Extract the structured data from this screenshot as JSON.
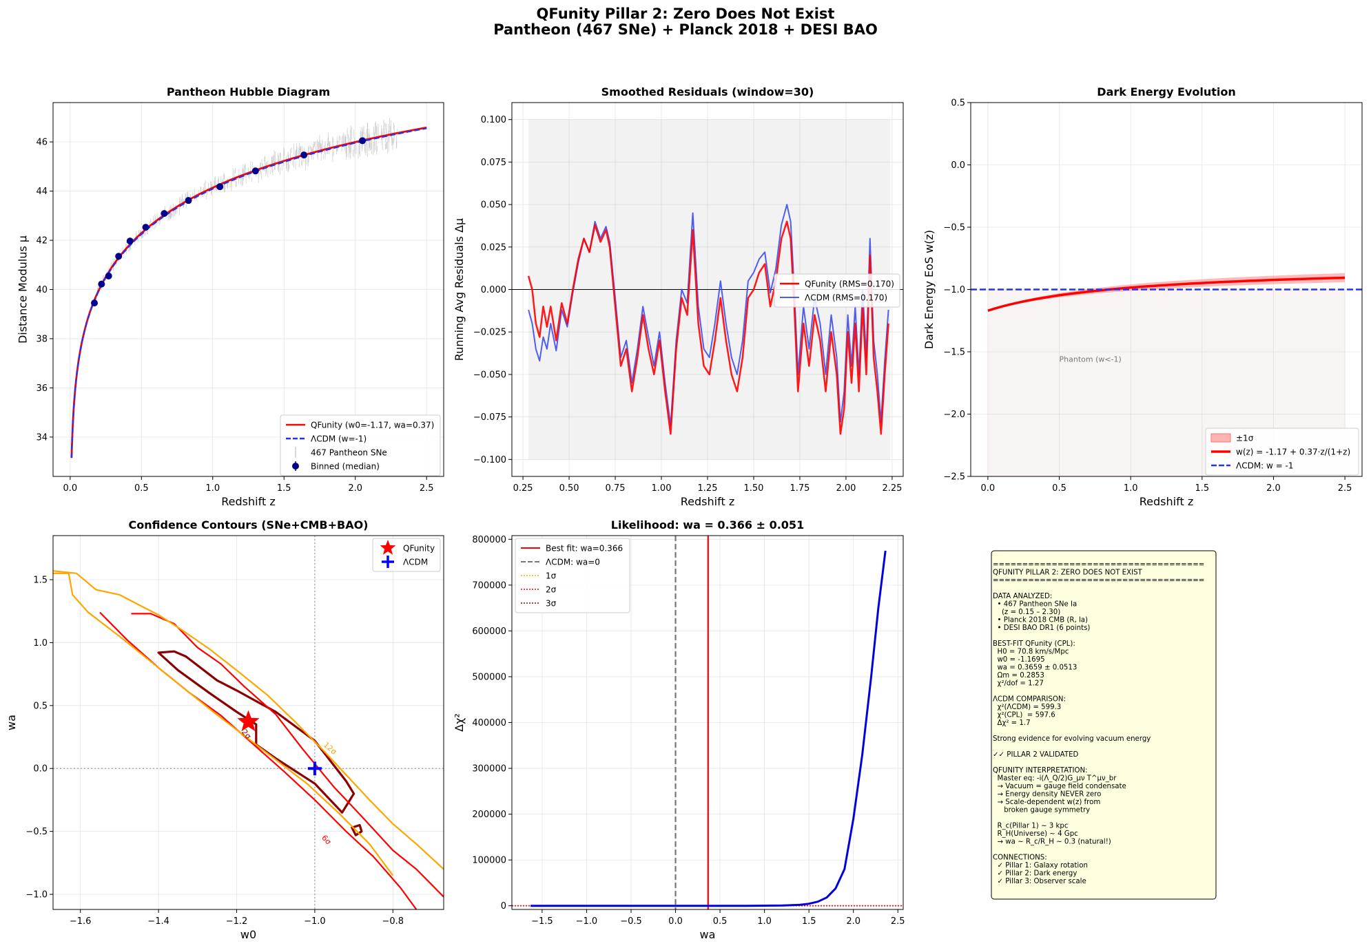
{
  "suptitle": {
    "line1": "QFunity Pillar 2: Zero Does Not Exist",
    "line2": "Pantheon (467 SNe) + Planck 2018 + DESI BAO"
  },
  "colors": {
    "qfunity": "#ff0000",
    "lcdm": "#2233ee",
    "binned": "#00008b",
    "sne": "#b0b0b0",
    "contour_2sigma": "#8b0000",
    "contour_6sigma": "#ff0000",
    "contour_12sigma": "#ffa500",
    "textbox_fill": "#ffffe0"
  },
  "chart_data": [
    {
      "id": "hubble",
      "type": "line",
      "title": "Pantheon Hubble Diagram",
      "xlabel": "Redshift z",
      "ylabel": "Distance Modulus μ",
      "xlim": [
        -0.12,
        2.62
      ],
      "ylim": [
        32.4,
        47.6
      ],
      "xticks": [
        0.0,
        0.5,
        1.0,
        1.5,
        2.0,
        2.5
      ],
      "xtick_labels": [
        "0.0",
        "0.5",
        "1.0",
        "1.5",
        "2.0",
        "2.5"
      ],
      "yticks": [
        34,
        36,
        38,
        40,
        42,
        44,
        46
      ],
      "ytick_labels": [
        "34",
        "36",
        "38",
        "40",
        "42",
        "44",
        "46"
      ],
      "grid": true,
      "legend_position": "lower-right",
      "model_curve": {
        "h0_kms_mpc": 70.8,
        "omega_m": 0.2853,
        "w0": -1.1695,
        "wa": 0.3659,
        "z_range": [
          0.01,
          2.5
        ]
      },
      "series": [
        {
          "name": "QFunity (w0=-1.17, wa=0.37)",
          "style": "line",
          "color": "#ff0000"
        },
        {
          "name": "ΛCDM (w=-1)",
          "style": "dashed",
          "color": "#2233ee"
        },
        {
          "name": "467 Pantheon SNe",
          "style": "errorbar",
          "color": "#b0b0b0",
          "count": 467,
          "z_range": [
            0.15,
            2.3
          ]
        },
        {
          "name": "Binned (median)",
          "style": "points",
          "color": "#00008b",
          "x": [
            0.17,
            0.22,
            0.27,
            0.34,
            0.42,
            0.53,
            0.66,
            0.83,
            1.05,
            1.3,
            1.64,
            2.05
          ],
          "y": [
            39.45,
            40.22,
            40.55,
            41.35,
            41.97,
            42.53,
            43.09,
            43.62,
            44.18,
            44.82,
            45.47,
            46.05
          ]
        }
      ]
    },
    {
      "id": "residuals",
      "type": "line",
      "title": "Smoothed Residuals (window=30)",
      "xlabel": "Redshift z",
      "ylabel": "Running Avg Residuals Δμ",
      "xlim": [
        0.19,
        2.31
      ],
      "ylim": [
        -0.11,
        0.11
      ],
      "xticks": [
        0.25,
        0.5,
        0.75,
        1.0,
        1.25,
        1.5,
        1.75,
        2.0,
        2.25
      ],
      "xtick_labels": [
        "0.25",
        "0.50",
        "0.75",
        "1.00",
        "1.25",
        "1.50",
        "1.75",
        "2.00",
        "2.25"
      ],
      "yticks": [
        -0.1,
        -0.075,
        -0.05,
        -0.025,
        0.0,
        0.025,
        0.05,
        0.075,
        0.1
      ],
      "ytick_labels": [
        "−0.100",
        "−0.075",
        "−0.050",
        "−0.025",
        "0.000",
        "0.025",
        "0.050",
        "0.075",
        "0.100"
      ],
      "grid": true,
      "shaded_band": {
        "x": [
          0.28,
          2.24
        ],
        "y": [
          -0.1,
          0.1
        ]
      },
      "legend_position": "center-right",
      "series": [
        {
          "name": "QFunity (RMS=0.170)",
          "color": "#ff0000",
          "x": [
            0.28,
            0.3,
            0.32,
            0.34,
            0.36,
            0.38,
            0.4,
            0.43,
            0.46,
            0.49,
            0.52,
            0.55,
            0.58,
            0.61,
            0.64,
            0.67,
            0.7,
            0.72,
            0.75,
            0.78,
            0.81,
            0.84,
            0.87,
            0.9,
            0.93,
            0.96,
            0.99,
            1.02,
            1.05,
            1.08,
            1.11,
            1.14,
            1.17,
            1.2,
            1.23,
            1.26,
            1.29,
            1.32,
            1.35,
            1.38,
            1.41,
            1.44,
            1.47,
            1.5,
            1.53,
            1.56,
            1.59,
            1.62,
            1.65,
            1.68,
            1.7,
            1.72,
            1.74,
            1.77,
            1.8,
            1.83,
            1.86,
            1.89,
            1.92,
            1.95,
            1.97,
            1.99,
            2.01,
            2.03,
            2.05,
            2.07,
            2.09,
            2.11,
            2.13,
            2.15,
            2.17,
            2.19,
            2.21,
            2.23
          ],
          "y": [
            0.008,
            0.0,
            -0.02,
            -0.028,
            -0.01,
            -0.022,
            -0.01,
            -0.03,
            -0.008,
            -0.02,
            0.0,
            0.018,
            0.03,
            0.022,
            0.038,
            0.028,
            0.035,
            0.025,
            -0.01,
            -0.045,
            -0.035,
            -0.06,
            -0.04,
            -0.015,
            -0.035,
            -0.05,
            -0.03,
            -0.06,
            -0.085,
            -0.035,
            -0.005,
            -0.015,
            0.035,
            -0.02,
            -0.045,
            -0.05,
            -0.03,
            -0.005,
            -0.03,
            -0.05,
            -0.06,
            -0.04,
            -0.005,
            0.0,
            0.01,
            0.015,
            -0.01,
            0.005,
            0.03,
            0.04,
            0.03,
            -0.01,
            -0.06,
            -0.02,
            -0.045,
            -0.015,
            -0.03,
            -0.06,
            -0.025,
            -0.05,
            -0.085,
            -0.07,
            -0.025,
            -0.055,
            -0.02,
            -0.06,
            -0.01,
            -0.05,
            0.02,
            -0.04,
            -0.06,
            -0.085,
            -0.05,
            -0.02
          ]
        },
        {
          "name": "ΛCDM (RMS=0.170)",
          "color": "#3344ee",
          "x": [
            0.28,
            0.3,
            0.32,
            0.34,
            0.36,
            0.38,
            0.4,
            0.43,
            0.46,
            0.49,
            0.52,
            0.55,
            0.58,
            0.61,
            0.64,
            0.67,
            0.7,
            0.72,
            0.75,
            0.78,
            0.81,
            0.84,
            0.87,
            0.9,
            0.93,
            0.96,
            0.99,
            1.02,
            1.05,
            1.08,
            1.11,
            1.14,
            1.17,
            1.2,
            1.23,
            1.26,
            1.29,
            1.32,
            1.35,
            1.38,
            1.41,
            1.44,
            1.47,
            1.5,
            1.53,
            1.56,
            1.59,
            1.62,
            1.65,
            1.68,
            1.7,
            1.72,
            1.74,
            1.77,
            1.8,
            1.83,
            1.86,
            1.89,
            1.92,
            1.95,
            1.97,
            1.99,
            2.01,
            2.03,
            2.05,
            2.07,
            2.09,
            2.11,
            2.13,
            2.15,
            2.17,
            2.19,
            2.21,
            2.23
          ],
          "y": [
            -0.012,
            -0.02,
            -0.035,
            -0.042,
            -0.028,
            -0.035,
            -0.02,
            -0.036,
            -0.012,
            -0.022,
            -0.002,
            0.016,
            0.03,
            0.022,
            0.04,
            0.03,
            0.037,
            0.028,
            -0.005,
            -0.04,
            -0.03,
            -0.055,
            -0.035,
            -0.01,
            -0.028,
            -0.045,
            -0.025,
            -0.055,
            -0.08,
            -0.03,
            0.0,
            -0.008,
            0.045,
            -0.01,
            -0.035,
            -0.04,
            -0.02,
            0.005,
            -0.02,
            -0.04,
            -0.05,
            -0.03,
            0.005,
            0.01,
            0.018,
            0.022,
            -0.002,
            0.012,
            0.038,
            0.05,
            0.04,
            0.0,
            -0.05,
            -0.01,
            -0.035,
            -0.005,
            -0.02,
            -0.05,
            -0.015,
            -0.04,
            -0.078,
            -0.06,
            -0.015,
            -0.045,
            -0.01,
            -0.05,
            0.0,
            -0.04,
            0.03,
            -0.03,
            -0.05,
            -0.078,
            -0.042,
            -0.012
          ]
        }
      ]
    },
    {
      "id": "wz",
      "type": "line",
      "title": "Dark Energy Evolution",
      "xlabel": "Redshift z",
      "ylabel": "Dark Energy EoS w(z)",
      "xlim": [
        -0.12,
        2.62
      ],
      "ylim": [
        -2.5,
        0.5
      ],
      "xticks": [
        0.0,
        0.5,
        1.0,
        1.5,
        2.0,
        2.5
      ],
      "xtick_labels": [
        "0.0",
        "0.5",
        "1.0",
        "1.5",
        "2.0",
        "2.5"
      ],
      "yticks": [
        -2.5,
        -2.0,
        -1.5,
        -1.0,
        -0.5,
        0.0,
        0.5
      ],
      "ytick_labels": [
        "−2.5",
        "−2.0",
        "−1.5",
        "−1.0",
        "−0.5",
        "0.0",
        "0.5"
      ],
      "grid": true,
      "legend_position": "lower-right",
      "w0": -1.17,
      "wa": 0.37,
      "band_wa_sigma": 0.051,
      "phantom_region": {
        "x": [
          0,
          2.5
        ],
        "y": [
          -2.5,
          -1.0
        ]
      },
      "annotation": "Phantom (w<-1)",
      "annotation_at": {
        "x": 0.5,
        "y": -1.58
      },
      "series": [
        {
          "name": "±1σ",
          "style": "band",
          "color": "#ff7777"
        },
        {
          "name": "w(z) = -1.17 + 0.37·z/(1+z)",
          "style": "line",
          "color": "#ff0000"
        },
        {
          "name": "ΛCDM: w = -1",
          "style": "dashed",
          "color": "#2233ee",
          "y": -1.0
        }
      ]
    },
    {
      "id": "contours",
      "type": "line",
      "title": "Confidence Contours (SNe+CMB+BAO)",
      "xlabel": "w0",
      "ylabel": "wa",
      "xlim": [
        -1.67,
        -0.67
      ],
      "ylim": [
        -1.12,
        1.85
      ],
      "xticks": [
        -1.6,
        -1.4,
        -1.2,
        -1.0,
        -0.8
      ],
      "xtick_labels": [
        "−1.6",
        "−1.4",
        "−1.2",
        "−1.0",
        "−0.8"
      ],
      "yticks": [
        -1.0,
        -0.5,
        0.0,
        0.5,
        1.0,
        1.5
      ],
      "ytick_labels": [
        "−1.0",
        "−0.5",
        "0.0",
        "0.5",
        "1.0",
        "1.5"
      ],
      "grid": true,
      "legend_position": "upper-right",
      "reference_lines": {
        "x": -1.0,
        "y": 0.0
      },
      "contours": [
        {
          "label": "2σ",
          "color": "#8b0000",
          "closed": true,
          "x": [
            -1.4,
            -1.36,
            -1.33,
            -1.25,
            -1.2,
            -1.1,
            -1.0,
            -0.92,
            -0.9,
            -0.93,
            -1.0,
            -1.1,
            -1.15,
            -1.15,
            -1.2,
            -1.27,
            -1.35,
            -1.4
          ],
          "y": [
            0.92,
            0.93,
            0.89,
            0.7,
            0.62,
            0.45,
            0.22,
            -0.1,
            -0.2,
            -0.35,
            -0.12,
            0.08,
            0.19,
            0.35,
            0.45,
            0.6,
            0.78,
            0.92
          ]
        },
        {
          "label": "",
          "color": "#8b0000",
          "closed": true,
          "x": [
            -0.905,
            -0.885,
            -0.88,
            -0.895,
            -0.905
          ],
          "y": [
            -0.47,
            -0.45,
            -0.5,
            -0.53,
            -0.47
          ]
        },
        {
          "label": "6σ",
          "color": "#ff0000",
          "closed": false,
          "x": [
            -1.47,
            -1.42,
            -1.36,
            -1.3,
            -1.24,
            -1.18,
            -1.1,
            -1.03,
            -0.95,
            -0.88,
            -0.8,
            -0.74,
            -0.67
          ],
          "y": [
            1.23,
            1.23,
            1.15,
            0.96,
            0.83,
            0.65,
            0.43,
            0.15,
            -0.15,
            -0.38,
            -0.65,
            -0.8,
            -1.02
          ]
        },
        {
          "label": "",
          "color": "#ff0000",
          "closed": false,
          "x": [
            -1.55,
            -1.48,
            -1.4,
            -1.32,
            -1.24,
            -1.16,
            -1.08,
            -1.0,
            -0.92,
            -0.85,
            -0.78,
            -0.74
          ],
          "y": [
            1.24,
            1.02,
            0.8,
            0.6,
            0.42,
            0.2,
            -0.02,
            -0.25,
            -0.5,
            -0.7,
            -0.95,
            -1.12
          ]
        },
        {
          "label": "12σ",
          "color": "#ffa500",
          "closed": false,
          "x": [
            -1.67,
            -1.61,
            -1.56,
            -1.5,
            -1.45,
            -1.4,
            -1.34,
            -1.27,
            -1.2,
            -1.12,
            -1.05,
            -0.98,
            -0.92,
            -0.86,
            -0.8,
            -0.74,
            -0.67
          ],
          "y": [
            1.57,
            1.55,
            1.42,
            1.38,
            1.3,
            1.22,
            1.1,
            0.95,
            0.78,
            0.58,
            0.37,
            0.15,
            -0.05,
            -0.25,
            -0.44,
            -0.6,
            -0.8
          ]
        },
        {
          "label": "",
          "color": "#ffa500",
          "closed": false,
          "x": [
            -1.67,
            -1.63,
            -1.62,
            -1.58,
            -1.5,
            -1.42,
            -1.34,
            -1.26,
            -1.18,
            -1.1,
            -1.02,
            -0.94,
            -0.86,
            -0.8
          ],
          "y": [
            1.55,
            1.55,
            1.38,
            1.24,
            1.05,
            0.85,
            0.65,
            0.45,
            0.26,
            0.07,
            -0.12,
            -0.35,
            -0.6,
            -0.85
          ]
        }
      ],
      "series": [
        {
          "name": "QFunity",
          "style": "star",
          "color": "#ff0000",
          "x": -1.17,
          "y": 0.37
        },
        {
          "name": "ΛCDM",
          "style": "plus",
          "color": "#0000ff",
          "x": -1.0,
          "y": 0.0
        }
      ]
    },
    {
      "id": "likelihood",
      "type": "line",
      "title": "Likelihood: wa = 0.366 ± 0.051",
      "xlabel": "wa",
      "ylabel": "Δχ²",
      "xlim": [
        -1.84,
        2.56
      ],
      "ylim": [
        -8000,
        808000
      ],
      "xticks": [
        -1.5,
        -1.0,
        -0.5,
        0.0,
        0.5,
        1.0,
        1.5,
        2.0,
        2.5
      ],
      "xtick_labels": [
        "−1.5",
        "−1.0",
        "−0.5",
        "0.0",
        "0.5",
        "1.0",
        "1.5",
        "2.0",
        "2.5"
      ],
      "yticks": [
        0,
        100000,
        200000,
        300000,
        400000,
        500000,
        600000,
        700000,
        800000
      ],
      "ytick_labels": [
        "0",
        "100000",
        "200000",
        "300000",
        "400000",
        "500000",
        "600000",
        "700000",
        "800000"
      ],
      "grid": true,
      "legend_position": "upper-left",
      "series": [
        {
          "name": "Δχ²(wa)",
          "style": "line",
          "color": "#0000dd",
          "x": [
            -1.63,
            -1.0,
            0.0,
            0.8,
            1.2,
            1.4,
            1.5,
            1.6,
            1.7,
            1.8,
            1.9,
            2.0,
            2.1,
            2.2,
            2.28,
            2.36
          ],
          "y": [
            0,
            0,
            0,
            0,
            500,
            2000,
            4500,
            9000,
            18000,
            38000,
            80000,
            190000,
            330000,
            500000,
            650000,
            775000
          ]
        },
        {
          "name": "Best fit: wa=0.366",
          "style": "vline",
          "color": "#ff0000",
          "x": 0.366
        },
        {
          "name": "ΛCDM: wa=0",
          "style": "vline-dashed",
          "color": "#777777",
          "x": 0.0
        },
        {
          "name": "1σ",
          "style": "hline-dotted",
          "color": "#ffa500",
          "y": 1
        },
        {
          "name": "2σ",
          "style": "hline-dotted",
          "color": "#ff0000",
          "y": 4
        },
        {
          "name": "3σ",
          "style": "hline-dotted",
          "color": "#8b0000",
          "y": 9
        }
      ]
    }
  ],
  "textbox": {
    "lines": [
      "====================================",
      "QFUNITY PILLAR 2: ZERO DOES NOT EXIST",
      "====================================",
      "",
      "DATA ANALYZED:",
      "  • 467 Pantheon SNe Ia",
      "    (z = 0.15 – 2.30)",
      "  • Planck 2018 CMB (R, la)",
      "  • DESI BAO DR1 (6 points)",
      "",
      "BEST-FIT QFunity (CPL):",
      "  H0 = 70.8 km/s/Mpc",
      "  w0 = -1.1695",
      "  wa = 0.3659 ± 0.0513",
      "  Ωm = 0.2853",
      "  χ²/dof = 1.27",
      "",
      "ΛCDM COMPARISON:",
      "  χ²(ΛCDM) = 599.3",
      "  χ²(CPL)  = 597.6",
      "  Δχ² = 1.7",
      "",
      "Strong evidence for evolving vacuum energy",
      "",
      "✓✓ PILLAR 2 VALIDATED",
      "",
      "QFUNITY INTERPRETATION:",
      "  Master eq: -i(Λ_Q/2)G_μν T^μν_br",
      "  → Vacuum = gauge field condensate",
      "  → Energy density NEVER zero",
      "  → Scale-dependent w(z) from",
      "     broken gauge symmetry",
      "",
      "  R_c(Pillar 1) ~ 3 kpc",
      "  R_H(Universe) ~ 4 Gpc",
      "  → wa ~ R_c/R_H ~ 0.3 (natural!)",
      "",
      "CONNECTIONS:",
      "  ✓ Pillar 1: Galaxy rotation",
      "  ✓ Pillar 2: Dark energy",
      "  ✓ Pillar 3: Observer scale"
    ]
  }
}
